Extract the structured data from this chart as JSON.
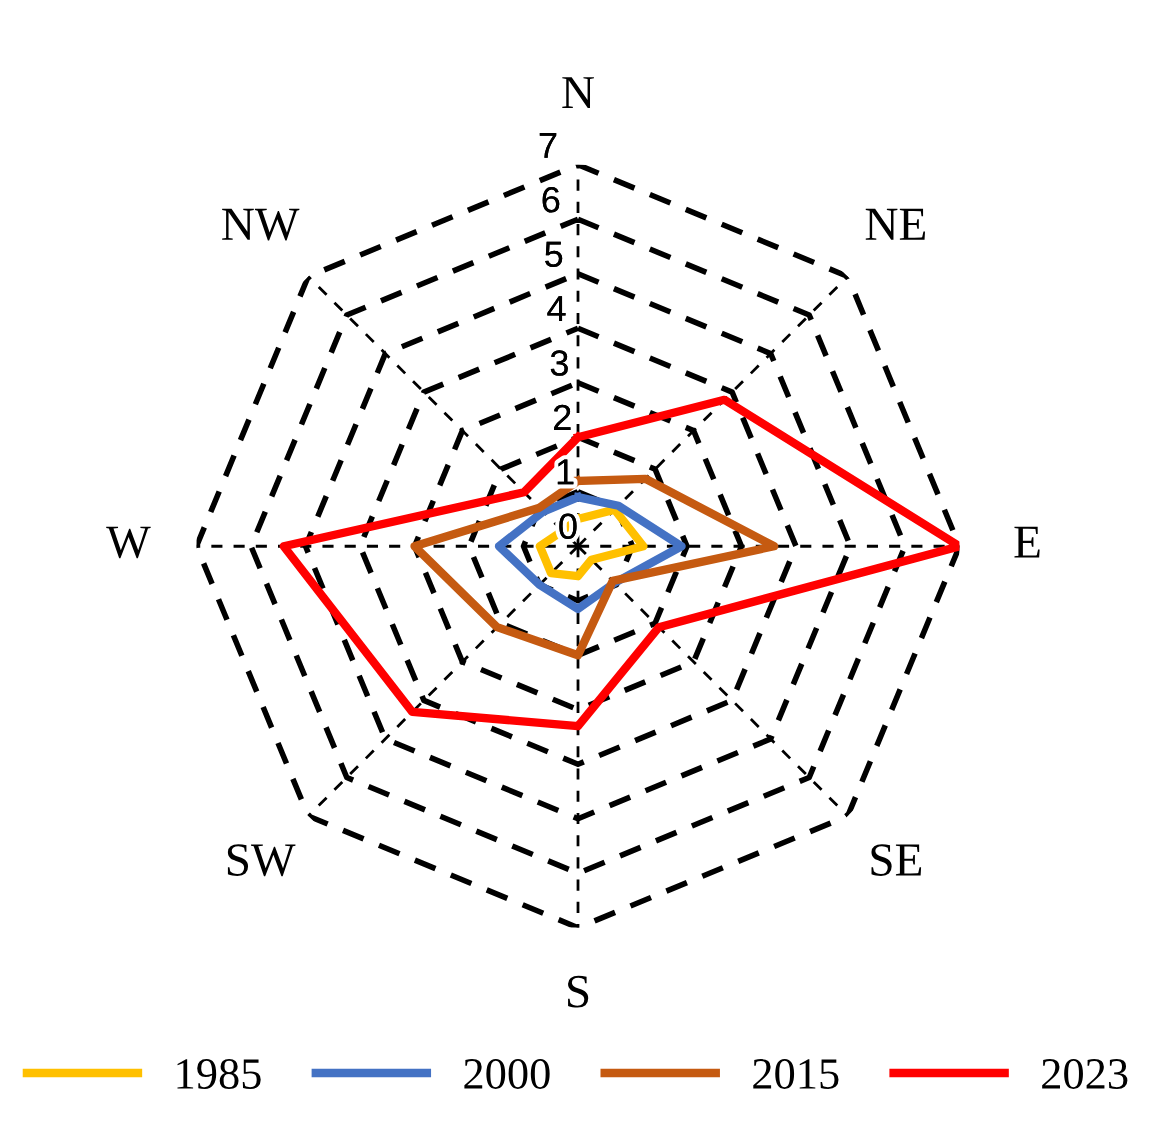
{
  "chart_data": {
    "type": "radar",
    "categories": [
      "N",
      "NE",
      "E",
      "SE",
      "S",
      "SW",
      "W",
      "NW"
    ],
    "series": [
      {
        "name": "1985",
        "color": "#ffc000",
        "values": [
          0.5,
          0.95,
          1.2,
          0.35,
          0.55,
          0.7,
          0.7,
          0.4
        ]
      },
      {
        "name": "2000",
        "color": "#4472c4",
        "values": [
          0.9,
          1.05,
          1.9,
          0.95,
          1.15,
          1.0,
          1.45,
          0.9
        ]
      },
      {
        "name": "2015",
        "color": "#c55a11",
        "values": [
          1.2,
          1.75,
          3.6,
          0.9,
          2.0,
          2.1,
          3.0,
          1.0
        ]
      },
      {
        "name": "2023",
        "color": "#ff0000",
        "values": [
          2.0,
          3.8,
          7.0,
          2.1,
          3.3,
          4.3,
          5.4,
          1.4
        ]
      }
    ],
    "ylim": [
      0,
      7
    ],
    "yticks": [
      0,
      1,
      2,
      3,
      4,
      5,
      6,
      7
    ],
    "grid": true,
    "legend": "bottom",
    "marker": "none",
    "line_style": "solid"
  }
}
